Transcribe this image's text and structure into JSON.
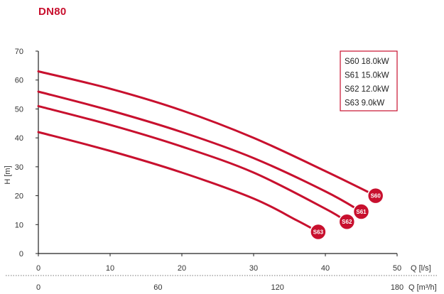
{
  "header": {
    "title": "DN80"
  },
  "chart_data": {
    "type": "line",
    "title": "DN80",
    "ylabel": "H [m]",
    "xlabel": "Q [l/s]",
    "xlabel_secondary": "Q [m³/h]",
    "ylim": [
      0,
      70
    ],
    "xlim": [
      0,
      50
    ],
    "y_ticks": [
      "0",
      "10",
      "20",
      "30",
      "40",
      "50",
      "60",
      "70"
    ],
    "x_ticks": [
      "0",
      "10",
      "20",
      "30",
      "40",
      "50"
    ],
    "x_ticks_secondary": [
      "0",
      "60",
      "120",
      "180"
    ],
    "grid": false,
    "legend_position": "top-right",
    "legend": [
      "S60 18.0kW",
      "S61 15.0kW",
      "S62 12.0kW",
      "S63 9.0kW"
    ],
    "series": [
      {
        "name": "S60",
        "x": [
          0,
          10,
          20,
          30,
          40,
          47
        ],
        "y": [
          63,
          57,
          49.5,
          40,
          28.5,
          20
        ]
      },
      {
        "name": "S61",
        "x": [
          0,
          10,
          20,
          30,
          40,
          45
        ],
        "y": [
          56,
          49.5,
          42,
          33,
          21.5,
          14.5
        ]
      },
      {
        "name": "S62",
        "x": [
          0,
          10,
          20,
          30,
          40,
          43
        ],
        "y": [
          51,
          44.5,
          37,
          28,
          15.5,
          11
        ]
      },
      {
        "name": "S63",
        "x": [
          0,
          10,
          20,
          30,
          36,
          39
        ],
        "y": [
          42,
          35.5,
          28,
          19,
          11.5,
          7.5
        ]
      }
    ],
    "colors": {
      "curve": "#c8102e",
      "axis": "#222222"
    }
  }
}
